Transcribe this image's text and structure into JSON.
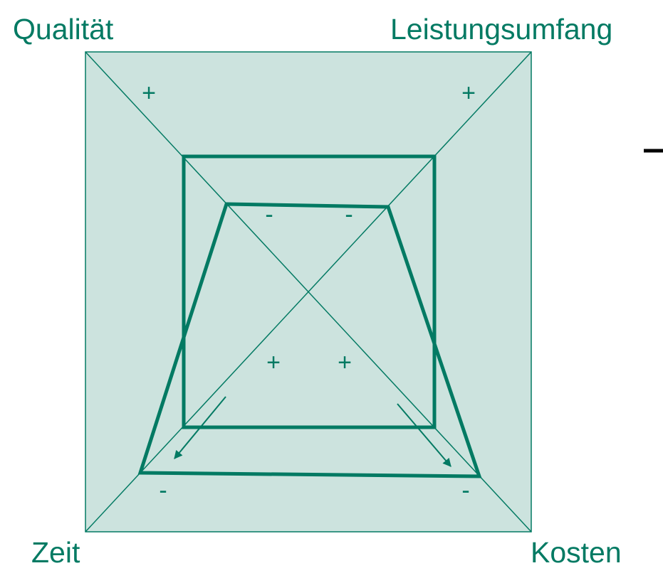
{
  "labels": {
    "top_left": "Qualität",
    "top_right": "Leistungsumfang",
    "bottom_left": "Zeit",
    "bottom_right": "Kosten"
  },
  "signs": {
    "outer_top_left": "+",
    "outer_top_right": "+",
    "inner_top_left": "-",
    "inner_top_right": "-",
    "inner_bottom_left": "+",
    "inner_bottom_right": "+",
    "outer_bottom_left": "-",
    "outer_bottom_right": "-"
  },
  "colors": {
    "primary": "#037a63",
    "fill": "#cce3de",
    "background": "#ffffff",
    "edge_mark": "#000000"
  }
}
